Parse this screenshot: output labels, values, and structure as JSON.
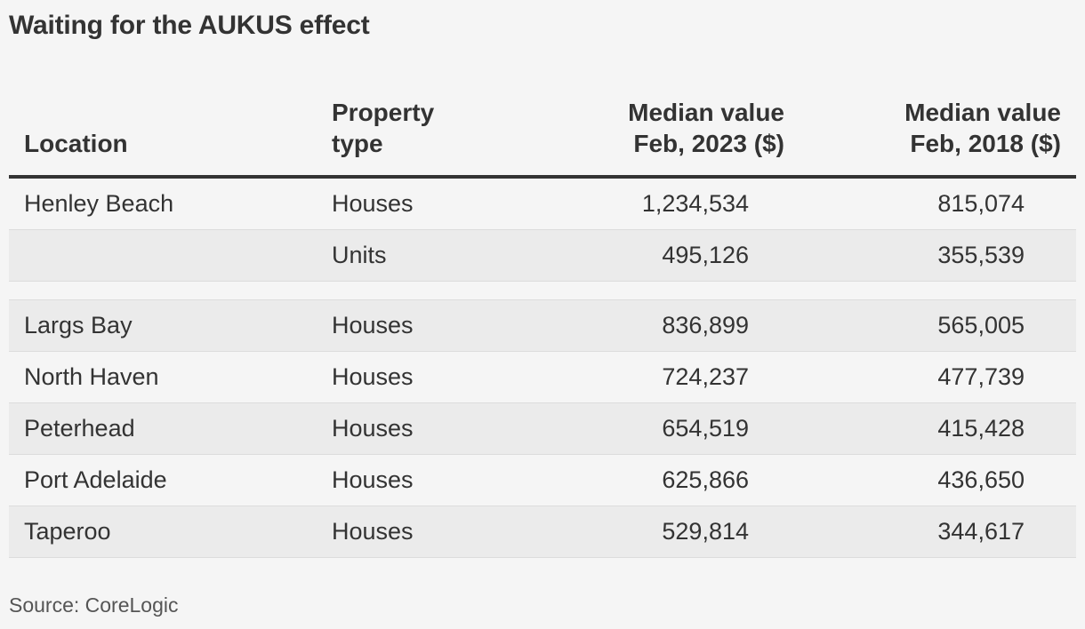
{
  "title": "Waiting for the AUKUS effect",
  "source": "Source: CoreLogic",
  "chart_data": {
    "type": "table",
    "title": "Waiting for the AUKUS effect",
    "columns": [
      {
        "line1": "",
        "line2": "Location"
      },
      {
        "line1": "Property",
        "line2": "type"
      },
      {
        "line1": "Median value",
        "line2": "Feb, 2023 ($)"
      },
      {
        "line1": "Median value",
        "line2": "Feb, 2018 ($)"
      }
    ],
    "groups": [
      {
        "rows": [
          {
            "location": "Henley Beach",
            "type": "Houses",
            "v2023": "1,234,534",
            "v2018": "815,074"
          },
          {
            "location": "",
            "type": "Units",
            "v2023": "495,126",
            "v2018": "355,539"
          }
        ]
      },
      {
        "rows": [
          {
            "location": "Largs Bay",
            "type": "Houses",
            "v2023": "836,899",
            "v2018": "565,005"
          },
          {
            "location": "North Haven",
            "type": "Houses",
            "v2023": "724,237",
            "v2018": "477,739"
          },
          {
            "location": "Peterhead",
            "type": "Houses",
            "v2023": "654,519",
            "v2018": "415,428"
          },
          {
            "location": "Port Adelaide",
            "type": "Houses",
            "v2023": "625,866",
            "v2018": "436,650"
          },
          {
            "location": "Taperoo",
            "type": "Houses",
            "v2023": "529,814",
            "v2018": "344,617"
          }
        ]
      }
    ]
  }
}
